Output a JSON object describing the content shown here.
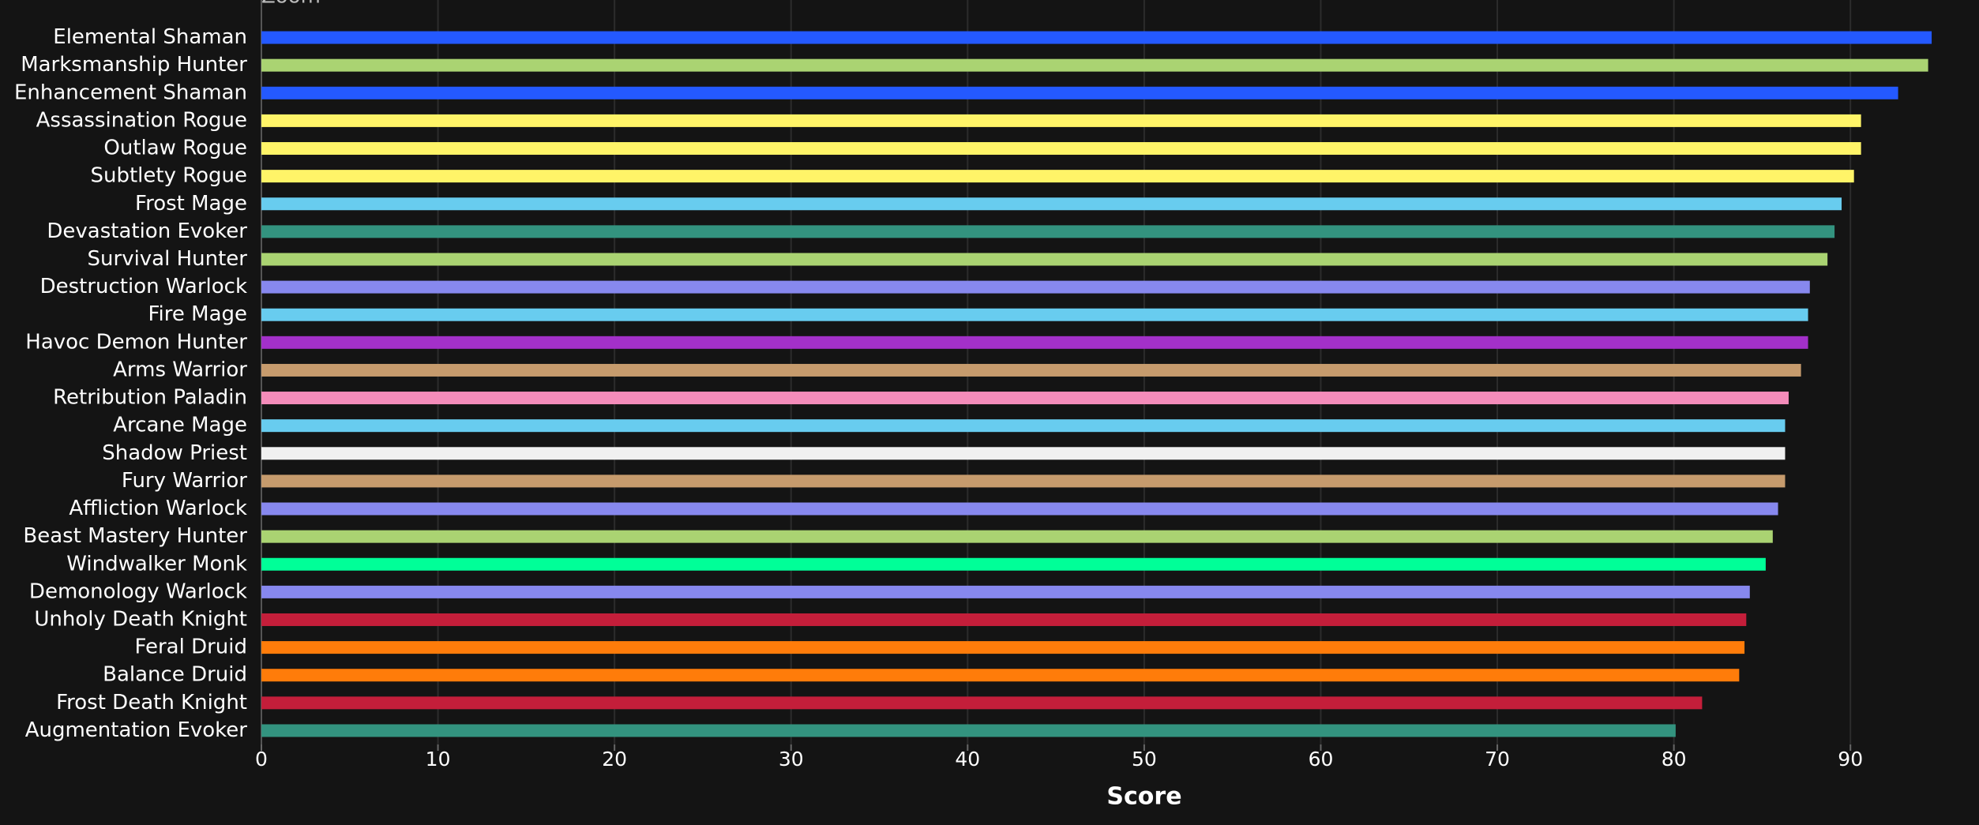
{
  "zoom_label": "Zoom",
  "chart_data": {
    "type": "barh",
    "x_label": "Score",
    "categories": [
      "Elemental Shaman",
      "Marksmanship Hunter",
      "Enhancement Shaman",
      "Assassination Rogue",
      "Outlaw Rogue",
      "Subtlety Rogue",
      "Frost Mage",
      "Devastation Evoker",
      "Survival Hunter",
      "Destruction Warlock",
      "Fire Mage",
      "Havoc Demon Hunter",
      "Arms Warrior",
      "Retribution Paladin",
      "Arcane Mage",
      "Shadow Priest",
      "Fury Warrior",
      "Affliction Warlock",
      "Beast Mastery Hunter",
      "Windwalker Monk",
      "Demonology Warlock",
      "Unholy Death Knight",
      "Feral Druid",
      "Balance Druid",
      "Frost Death Knight",
      "Augmentation Evoker"
    ],
    "values": [
      94.6,
      94.4,
      92.7,
      90.6,
      90.6,
      90.2,
      89.5,
      89.1,
      88.7,
      87.7,
      87.6,
      87.6,
      87.2,
      86.5,
      86.3,
      86.3,
      86.3,
      85.9,
      85.6,
      85.2,
      84.3,
      84.1,
      84.0,
      83.7,
      81.6,
      80.1
    ],
    "colors": [
      "#2459ff",
      "#aad372",
      "#2459ff",
      "#fff468",
      "#fff468",
      "#fff468",
      "#68ccef",
      "#33937f",
      "#aad372",
      "#8788ee",
      "#68ccef",
      "#a330c9",
      "#c69b6d",
      "#f48cba",
      "#68ccef",
      "#f0f0f0",
      "#c69b6d",
      "#8788ee",
      "#aad372",
      "#00ff98",
      "#8788ee",
      "#c41e3a",
      "#ff7c0a",
      "#ff7c0a",
      "#c41e3a",
      "#33937f"
    ],
    "xlim": [
      0,
      95
    ],
    "xticks": [
      0,
      10,
      20,
      30,
      40,
      50,
      60,
      70,
      80,
      90
    ],
    "grid": true
  }
}
